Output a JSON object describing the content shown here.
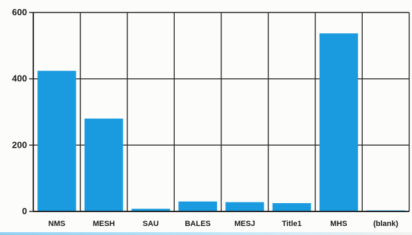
{
  "chart_data": {
    "type": "bar",
    "title": "",
    "xlabel": "",
    "ylabel": "",
    "categories": [
      "NMS",
      "MESH",
      "SAU",
      "BALES",
      "MESJ",
      "Title1",
      "MHS",
      "(blank)"
    ],
    "values": [
      424,
      280,
      8,
      30,
      28,
      25,
      537,
      2
    ],
    "ylim": [
      0,
      600
    ],
    "yticks": [
      0,
      200,
      400,
      600
    ],
    "grid": true,
    "bar_color": "#1a9be0",
    "legend": "none"
  }
}
